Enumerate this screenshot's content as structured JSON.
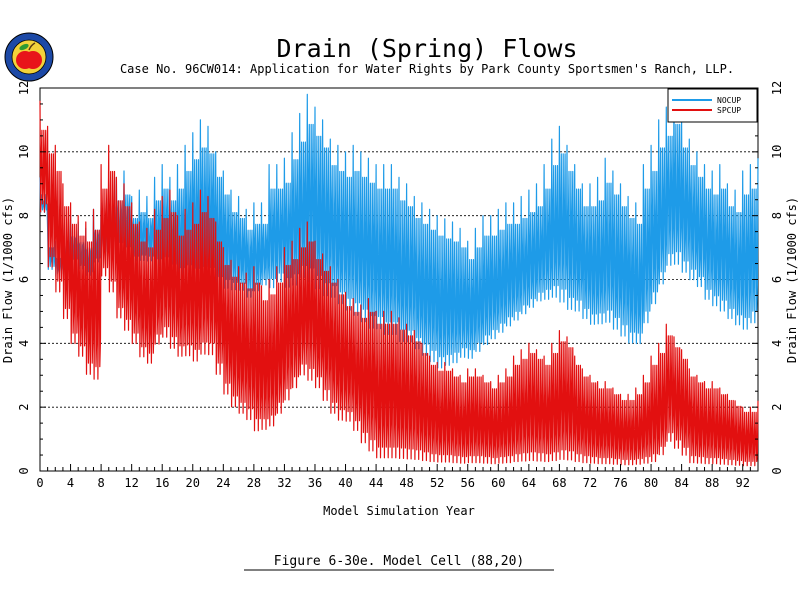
{
  "chart_data": {
    "type": "line",
    "title": "Drain (Spring) Flows",
    "subtitle": "Case No. 96CW014: Application for Water Rights by Park County Sportsmen's Ranch, LLP.",
    "xlabel": "Model Simulation Year",
    "ylabel": "Drain Flow  (1/1000 cfs)",
    "caption": "Figure 6-30e.  Model Cell (88,20)",
    "xlim": [
      0,
      94
    ],
    "ylim": [
      0,
      12
    ],
    "x_ticks": [
      0,
      4,
      8,
      12,
      16,
      20,
      24,
      28,
      32,
      36,
      40,
      44,
      48,
      52,
      56,
      60,
      64,
      68,
      72,
      76,
      80,
      84,
      88,
      92
    ],
    "y_ticks": [
      0,
      2,
      4,
      6,
      8,
      10,
      12
    ],
    "grid": "horizontal dashed",
    "legend_position": "top-right",
    "samples_per_year": 12,
    "series": [
      {
        "name": "NOCUP",
        "color": "#1e9be8",
        "yearly_max": [
          9.2,
          7.6,
          7.2,
          7.8,
          8.0,
          7.8,
          7.6,
          8.2,
          8.4,
          9.0,
          9.2,
          9.4,
          8.6,
          8.8,
          8.6,
          9.2,
          9.6,
          9.2,
          9.6,
          10.2,
          10.6,
          11.0,
          10.8,
          10.0,
          9.4,
          8.8,
          8.6,
          8.2,
          8.4,
          8.4,
          9.6,
          9.6,
          9.8,
          10.6,
          11.2,
          11.8,
          11.4,
          11.0,
          10.4,
          10.2,
          10.0,
          10.2,
          10.0,
          9.8,
          9.6,
          9.6,
          9.6,
          9.2,
          9.0,
          8.6,
          8.4,
          8.2,
          8.0,
          7.9,
          7.8,
          7.6,
          7.2,
          7.6,
          8.0,
          8.0,
          8.2,
          8.4,
          8.4,
          8.6,
          8.8,
          9.0,
          9.6,
          10.4,
          10.8,
          10.2,
          9.6,
          9.0,
          9.0,
          9.2,
          9.8,
          9.4,
          9.0,
          8.6,
          8.4,
          9.6,
          10.2,
          11.0,
          11.4,
          11.8,
          11.0,
          10.4,
          10.0,
          9.6,
          9.4,
          9.6,
          9.0,
          8.8,
          9.4,
          9.6,
          9.8
        ],
        "yearly_min": [
          8.0,
          6.2,
          6.0,
          6.2,
          6.4,
          6.2,
          6.0,
          6.4,
          6.6,
          6.8,
          6.8,
          6.6,
          6.4,
          6.4,
          6.4,
          6.2,
          6.2,
          6.0,
          5.8,
          5.8,
          5.6,
          5.6,
          5.6,
          5.4,
          5.4,
          5.4,
          5.4,
          5.2,
          5.4,
          5.6,
          5.4,
          5.6,
          5.4,
          5.4,
          5.6,
          5.4,
          5.2,
          5.0,
          5.0,
          4.8,
          4.6,
          4.4,
          4.2,
          4.0,
          4.0,
          3.8,
          3.8,
          3.6,
          3.6,
          3.4,
          3.2,
          3.0,
          2.8,
          2.9,
          3.0,
          3.2,
          3.2,
          3.4,
          3.6,
          3.8,
          4.0,
          4.2,
          4.4,
          4.6,
          4.8,
          5.0,
          5.0,
          5.0,
          4.8,
          4.6,
          4.6,
          4.4,
          4.2,
          4.2,
          4.2,
          4.0,
          3.8,
          3.6,
          3.6,
          4.2,
          4.8,
          5.4,
          6.0,
          6.0,
          5.8,
          5.6,
          5.4,
          5.0,
          4.8,
          4.6,
          4.4,
          4.2,
          4.0,
          4.2,
          4.6
        ]
      },
      {
        "name": "SPCUP",
        "color": "#e21010",
        "yearly_max": [
          11.6,
          10.8,
          10.2,
          9.0,
          8.4,
          8.0,
          7.8,
          8.2,
          9.6,
          10.2,
          9.2,
          9.0,
          8.4,
          7.8,
          7.6,
          8.2,
          8.6,
          8.8,
          8.0,
          8.2,
          8.4,
          8.8,
          8.6,
          7.8,
          7.0,
          6.6,
          6.4,
          6.2,
          6.4,
          5.8,
          6.0,
          6.4,
          7.0,
          7.2,
          7.6,
          7.8,
          7.2,
          6.8,
          6.4,
          6.0,
          5.6,
          5.4,
          5.2,
          5.4,
          5.0,
          5.0,
          5.0,
          4.8,
          4.6,
          4.4,
          4.0,
          3.6,
          3.4,
          3.4,
          3.2,
          3.0,
          3.2,
          3.2,
          3.0,
          2.8,
          3.0,
          3.2,
          3.6,
          3.8,
          4.0,
          3.8,
          3.6,
          4.0,
          4.4,
          4.2,
          3.6,
          3.2,
          3.0,
          2.8,
          2.8,
          2.6,
          2.4,
          2.4,
          2.6,
          3.0,
          3.6,
          4.0,
          4.6,
          4.2,
          3.8,
          3.2,
          3.0,
          2.8,
          2.8,
          2.6,
          2.4,
          2.2,
          2.0,
          2.0,
          2.2
        ],
        "yearly_min": [
          7.8,
          6.0,
          5.2,
          4.4,
          3.6,
          3.2,
          2.6,
          2.4,
          5.8,
          5.2,
          4.4,
          4.0,
          3.6,
          3.2,
          3.0,
          3.6,
          3.8,
          3.4,
          3.2,
          3.2,
          3.0,
          3.2,
          3.2,
          2.6,
          2.0,
          1.6,
          1.4,
          1.2,
          0.8,
          0.9,
          1.0,
          1.4,
          1.8,
          2.2,
          2.6,
          2.4,
          2.2,
          1.8,
          1.4,
          1.2,
          1.2,
          0.9,
          0.5,
          0.2,
          0.0,
          0.0,
          0.0,
          0.0,
          0.0,
          0.0,
          0.0,
          0.0,
          0.0,
          0.0,
          0.0,
          0.0,
          0.0,
          0.0,
          0.0,
          0.0,
          0.0,
          0.0,
          0.0,
          0.0,
          0.0,
          0.0,
          0.0,
          0.0,
          0.0,
          0.0,
          0.0,
          0.0,
          0.0,
          0.0,
          0.0,
          0.0,
          0.0,
          0.0,
          0.0,
          0.0,
          0.0,
          0.2,
          0.6,
          0.4,
          0.2,
          0.0,
          0.0,
          0.0,
          0.0,
          0.0,
          0.0,
          0.0,
          0.0,
          0.0,
          0.0
        ]
      }
    ]
  },
  "logo": {
    "icon": "apple-seal-icon",
    "ring_color": "#1c49a6",
    "apple_color": "#e8141a",
    "leaf_color": "#2e9b32"
  }
}
